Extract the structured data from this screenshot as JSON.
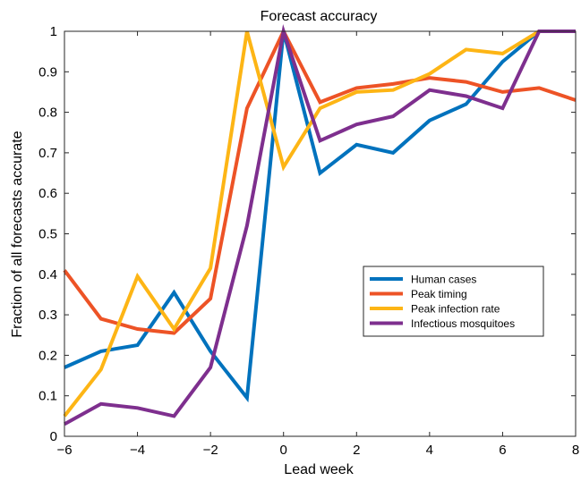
{
  "chart_data": {
    "type": "line",
    "title": "Forecast accuracy",
    "xlabel": "Lead week",
    "ylabel": "Fraction of all forecasts accurate",
    "xlim": [
      -6,
      8
    ],
    "ylim": [
      0,
      1
    ],
    "xticks": [
      -6,
      -4,
      -2,
      0,
      2,
      4,
      6,
      8
    ],
    "xtick_labels": [
      "−6",
      "−4",
      "−2",
      "0",
      "2",
      "4",
      "6",
      "8"
    ],
    "yticks": [
      0,
      0.1,
      0.2,
      0.3,
      0.4,
      0.5,
      0.6,
      0.7,
      0.8,
      0.9,
      1
    ],
    "ytick_labels": [
      "0",
      "0.1",
      "0.2",
      "0.3",
      "0.4",
      "0.5",
      "0.6",
      "0.7",
      "0.8",
      "0.9",
      "1"
    ],
    "grid": false,
    "legend_position": "center-right",
    "x": [
      -6,
      -5,
      -4,
      -3,
      -2,
      -1,
      0,
      1,
      2,
      3,
      4,
      5,
      6,
      7,
      8
    ],
    "series": [
      {
        "name": "Human cases",
        "color": "#0072BD",
        "values": [
          0.17,
          0.21,
          0.225,
          0.355,
          0.21,
          0.095,
          1.0,
          0.65,
          0.72,
          0.7,
          0.78,
          0.82,
          0.925,
          1.0,
          1.0
        ]
      },
      {
        "name": "Peak timing",
        "color": "#ED5326",
        "values": [
          0.41,
          0.29,
          0.265,
          0.255,
          0.34,
          0.81,
          1.0,
          0.825,
          0.86,
          0.87,
          0.885,
          0.875,
          0.85,
          0.86,
          0.83
        ]
      },
      {
        "name": "Peak infection rate",
        "color": "#FDB515",
        "values": [
          0.05,
          0.165,
          0.395,
          0.265,
          0.415,
          1.0,
          0.665,
          0.81,
          0.85,
          0.855,
          0.895,
          0.955,
          0.945,
          1.0,
          1.0
        ]
      },
      {
        "name": "Infectious mosquitoes",
        "color": "#7E2F8E",
        "values": [
          0.03,
          0.08,
          0.07,
          0.05,
          0.17,
          0.52,
          1.0,
          0.73,
          0.77,
          0.79,
          0.855,
          0.84,
          0.81,
          1.0,
          1.0
        ]
      }
    ]
  }
}
